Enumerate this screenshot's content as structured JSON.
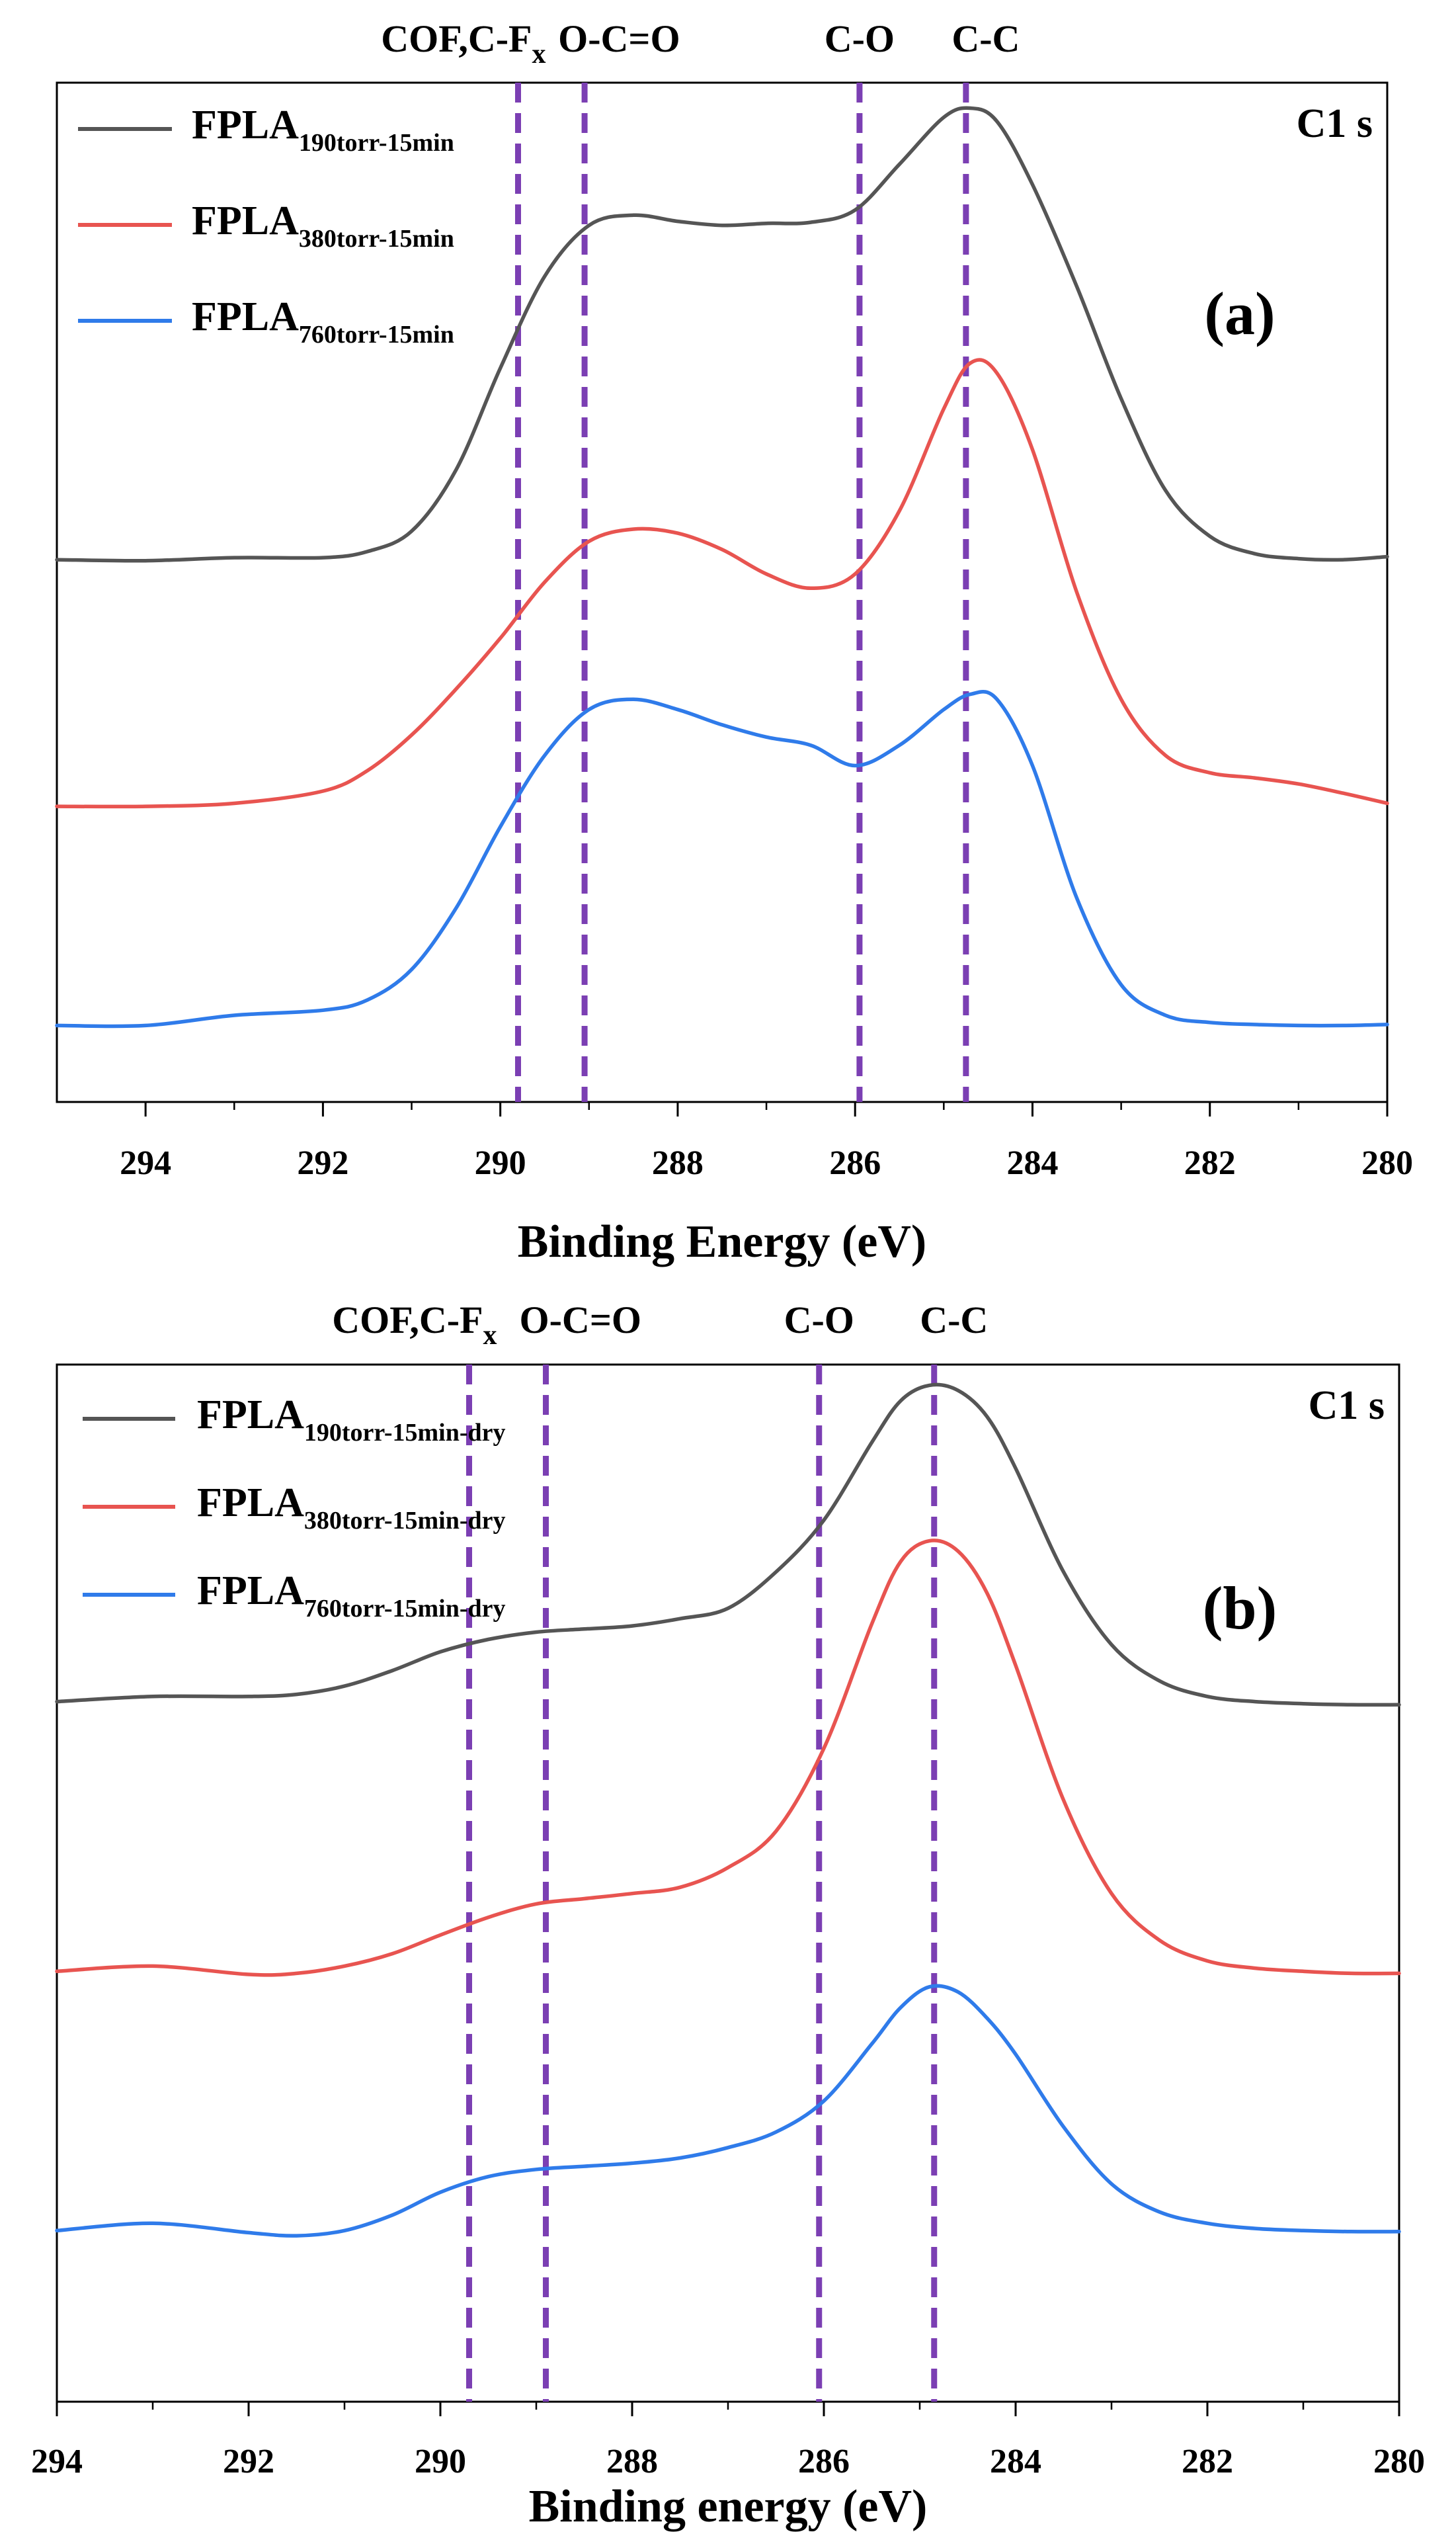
{
  "chart_data": [
    {
      "type": "line",
      "panel_label": "(a)",
      "element": "C1 s",
      "xlabel": "Binding Energy (eV)",
      "ylabel": "",
      "xlim": [
        295,
        280
      ],
      "ylim": [
        0,
        100
      ],
      "xticks": [
        294,
        292,
        290,
        288,
        286,
        284,
        282,
        280
      ],
      "xtick_labels": [
        "294",
        "292",
        "290",
        "288",
        "286",
        "284",
        "282",
        "280"
      ],
      "reference_lines": [
        {
          "x": 289.8,
          "label": "COF,C-F",
          "sub": "x"
        },
        {
          "x": 289.05,
          "label": "O-C=O",
          "sub": ""
        },
        {
          "x": 285.95,
          "label": "C-O",
          "sub": ""
        },
        {
          "x": 284.75,
          "label": "C-C",
          "sub": ""
        }
      ],
      "series": [
        {
          "base": "FPLA",
          "sub": "190torr-15min",
          "color": "#555555",
          "x": [
            295,
            294,
            293,
            292,
            291.5,
            291,
            290.5,
            290,
            289.5,
            289,
            288.5,
            288,
            287.5,
            287,
            286.5,
            286,
            285.5,
            285,
            284.7,
            284.4,
            284,
            283.5,
            283,
            282.5,
            282,
            281.5,
            281,
            280.5,
            280
          ],
          "y": [
            53.2,
            53.1,
            53.4,
            53.4,
            54,
            56,
            62,
            72,
            81,
            86,
            87,
            86.4,
            86,
            86.2,
            86.3,
            87.5,
            92,
            96.6,
            97.5,
            96.2,
            90,
            80,
            69,
            60,
            55.5,
            53.8,
            53.3,
            53.2,
            53.5
          ]
        },
        {
          "base": "FPLA",
          "sub": "380torr-15min",
          "color": "#e85450",
          "x": [
            295,
            294,
            293,
            292,
            291.5,
            291,
            290.5,
            290,
            289.5,
            289,
            288.5,
            288,
            287.5,
            287,
            286.5,
            286,
            285.5,
            285,
            284.7,
            284.4,
            284,
            283.5,
            283,
            282.5,
            282,
            281.5,
            281,
            280.5,
            280
          ],
          "y": [
            29,
            29,
            29.3,
            30.5,
            32.5,
            36,
            40.5,
            45.5,
            51,
            55,
            56.2,
            55.8,
            54.2,
            51.8,
            50.4,
            51.8,
            58,
            68,
            72.5,
            71.5,
            64,
            50,
            39.5,
            34,
            32.3,
            31.8,
            31.2,
            30.3,
            29.3
          ]
        },
        {
          "base": "FPLA",
          "sub": "760torr-15min",
          "color": "#2f7bea",
          "x": [
            295,
            294,
            293,
            292,
            291.5,
            291,
            290.5,
            290,
            289.5,
            289,
            288.5,
            288,
            287.5,
            287,
            286.5,
            286,
            285.5,
            285,
            284.7,
            284.4,
            284,
            283.5,
            283,
            282.5,
            282,
            281.5,
            281,
            280.5,
            280
          ],
          "y": [
            7.5,
            7.5,
            8.5,
            9,
            10,
            13,
            19,
            27,
            34,
            38.5,
            39.5,
            38.5,
            37,
            35.8,
            35,
            33,
            35,
            38.5,
            40,
            39.5,
            33,
            20,
            11.5,
            8.5,
            7.8,
            7.6,
            7.5,
            7.5,
            7.6
          ]
        }
      ]
    },
    {
      "type": "line",
      "panel_label": "(b)",
      "element": "C1 s",
      "xlabel": "Binding energy (eV)",
      "ylabel": "",
      "xlim": [
        294,
        280
      ],
      "ylim": [
        0,
        100
      ],
      "xticks": [
        294,
        292,
        290,
        288,
        286,
        284,
        282,
        280
      ],
      "xtick_labels": [
        "294",
        "292",
        "290",
        "288",
        "286",
        "284",
        "282",
        "280"
      ],
      "reference_lines": [
        {
          "x": 289.7,
          "label": "COF,C-F",
          "sub": "x"
        },
        {
          "x": 288.9,
          "label": "O-C=O",
          "sub": ""
        },
        {
          "x": 286.05,
          "label": "C-O",
          "sub": ""
        },
        {
          "x": 284.85,
          "label": "C-C",
          "sub": ""
        }
      ],
      "series": [
        {
          "base": "FPLA",
          "sub": "190torr-15min-dry",
          "color": "#555555",
          "x": [
            294,
            293,
            292,
            291.5,
            291,
            290.5,
            290,
            289.5,
            289,
            288.5,
            288,
            287.5,
            287,
            286.5,
            286,
            285.5,
            285.2,
            284.9,
            284.6,
            284.3,
            284,
            283.5,
            283,
            282.5,
            282,
            281.5,
            281,
            280.5,
            280
          ],
          "y": [
            67.5,
            68,
            68,
            68.2,
            69,
            70.5,
            72.3,
            73.5,
            74.2,
            74.5,
            74.8,
            75.5,
            76.5,
            80,
            85,
            92.5,
            96.5,
            98,
            97.5,
            95,
            90,
            80,
            73,
            69.5,
            68,
            67.5,
            67.3,
            67.2,
            67.2
          ]
        },
        {
          "base": "FPLA",
          "sub": "380torr-15min-dry",
          "color": "#e85450",
          "x": [
            294,
            293,
            292,
            291.5,
            291,
            290.5,
            290,
            289.5,
            289,
            288.5,
            288,
            287.5,
            287,
            286.5,
            286,
            285.5,
            285.2,
            284.9,
            284.6,
            284.3,
            284,
            283.5,
            283,
            282.5,
            282,
            281.5,
            281,
            280.5,
            280
          ],
          "y": [
            41.5,
            42,
            41.2,
            41.3,
            42,
            43.2,
            45,
            46.7,
            48,
            48.5,
            49,
            49.6,
            51.5,
            55,
            63,
            75,
            81,
            83,
            82,
            78,
            71,
            58,
            49,
            44.5,
            42.5,
            41.8,
            41.5,
            41.3,
            41.3
          ]
        },
        {
          "base": "FPLA",
          "sub": "760torr-15min-dry",
          "color": "#2f7bea",
          "x": [
            294,
            293,
            292,
            291.5,
            291,
            290.5,
            290,
            289.5,
            289,
            288.5,
            288,
            287.5,
            287,
            286.5,
            286,
            285.5,
            285.2,
            284.9,
            284.6,
            284.3,
            284,
            283.5,
            283,
            282.5,
            282,
            281.5,
            281,
            280.5,
            280
          ],
          "y": [
            16.5,
            17.2,
            16.3,
            16,
            16.5,
            18,
            20.2,
            21.7,
            22.4,
            22.7,
            23,
            23.5,
            24.5,
            26,
            29,
            34.5,
            38,
            40,
            39.5,
            37,
            33.5,
            26.5,
            21,
            18.3,
            17.2,
            16.7,
            16.5,
            16.4,
            16.4
          ]
        }
      ]
    }
  ]
}
